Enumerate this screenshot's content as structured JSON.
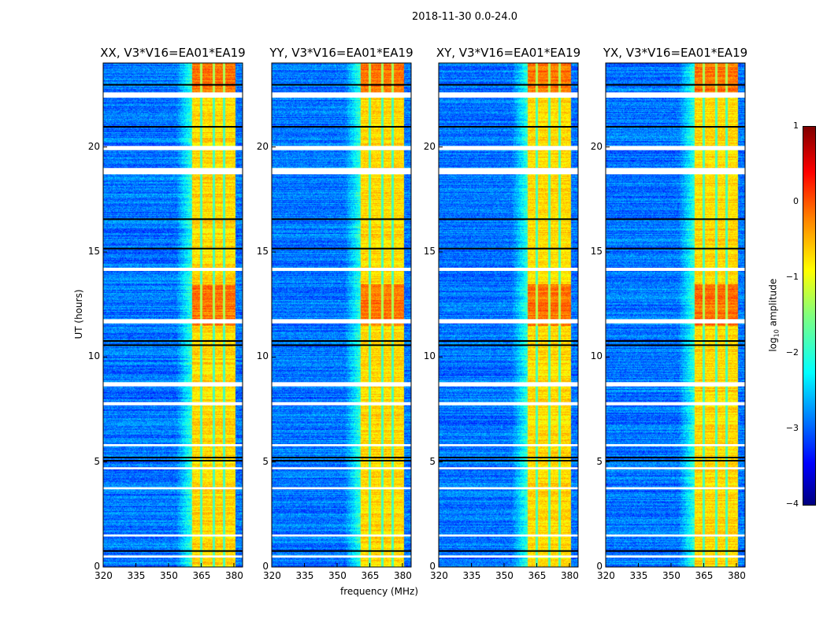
{
  "chart_data": {
    "type": "heatmap",
    "title": "2018-11-30 0.0-24.0",
    "xlabel": "frequency (MHz)",
    "ylabel": "UT (hours)",
    "xlim": [
      320,
      384
    ],
    "ylim": [
      0,
      24
    ],
    "xticks": [
      "320",
      "335",
      "350",
      "365",
      "380"
    ],
    "xtick_values": [
      320,
      335,
      350,
      365,
      380
    ],
    "yticks": [
      "0",
      "5",
      "10",
      "15",
      "20"
    ],
    "ytick_values": [
      0,
      5,
      10,
      15,
      20
    ],
    "panels": [
      {
        "title": "XX, V3*V16=EA01*EA19"
      },
      {
        "title": "YY, V3*V16=EA01*EA19"
      },
      {
        "title": "XY, V3*V16=EA01*EA19"
      },
      {
        "title": "YX, V3*V16=EA01*EA19"
      }
    ],
    "rfi_band_mhz": [
      360.5,
      382
    ],
    "rfi_subband_edges_mhz": [
      365,
      370.5,
      375.5
    ],
    "background_log_amplitude": -2.8,
    "band_log_amplitude": -0.7,
    "flagged_hours": [
      [
        22.35,
        22.6
      ],
      [
        19.85,
        20.05
      ],
      [
        18.7,
        19.0
      ],
      [
        14.1,
        14.25
      ],
      [
        11.6,
        11.8
      ],
      [
        8.6,
        8.8
      ],
      [
        7.7,
        7.85
      ],
      [
        5.75,
        5.85
      ],
      [
        4.65,
        4.75
      ],
      [
        3.7,
        3.8
      ],
      [
        1.45,
        1.55
      ],
      [
        0.45,
        0.55
      ]
    ],
    "dark_rows_hours": [
      23.0,
      21.0,
      16.6,
      15.2,
      10.8,
      10.6,
      5.25,
      5.1,
      0.8
    ],
    "colorbar": {
      "label": "log10 amplitude",
      "label_main": "log",
      "label_sub": "10",
      "label_rest": " amplitude",
      "range": [
        -4,
        1
      ],
      "ticks": [
        "1",
        "0",
        "−1",
        "−2",
        "−3",
        "−4"
      ],
      "tick_values": [
        1,
        0,
        -1,
        -2,
        -3,
        -4
      ],
      "colormap": "jet"
    }
  }
}
